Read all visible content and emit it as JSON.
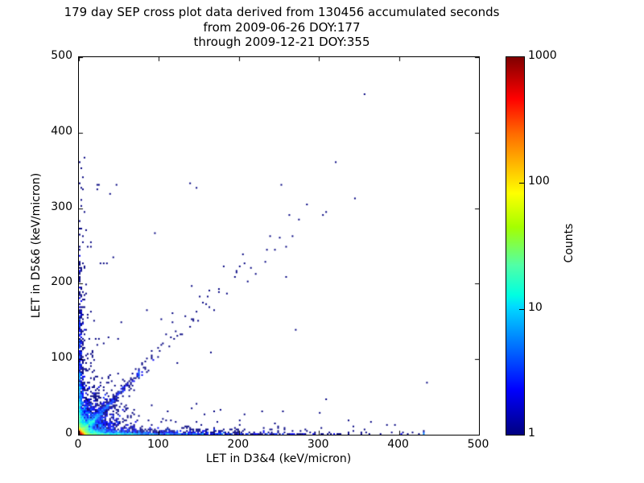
{
  "title": {
    "line1": "179 day SEP cross plot data derived from 130456 accumulated seconds",
    "line2": "from 2009-06-26 DOY:177",
    "line3": "through 2009-12-21 DOY:355"
  },
  "axes": {
    "xlabel": "LET in D3&4 (keV/micron)",
    "ylabel": "LET in D5&6 (keV/micron)",
    "xtick_labels": [
      "0",
      "100",
      "200",
      "300",
      "400",
      "500"
    ],
    "ytick_labels": [
      "0",
      "100",
      "200",
      "300",
      "400",
      "500"
    ],
    "xtick_values": [
      0,
      100,
      200,
      300,
      400,
      500
    ],
    "ytick_values": [
      0,
      100,
      200,
      300,
      400,
      500
    ],
    "xlim": [
      0,
      500
    ],
    "ylim": [
      0,
      500
    ]
  },
  "colorbar": {
    "label": "Counts",
    "tick_labels": [
      "1000",
      "100",
      "10",
      "1"
    ],
    "tick_values": [
      1000,
      100,
      10,
      1
    ],
    "inner_tick_values": [
      100,
      10
    ],
    "scale": "log",
    "min": 1,
    "max": 1000,
    "colormap": "jet",
    "gradient_stops": [
      [
        0,
        "#800000"
      ],
      [
        11,
        "#ff0000"
      ],
      [
        20,
        "#ff6800"
      ],
      [
        30,
        "#ffc600"
      ],
      [
        36,
        "#ffff00"
      ],
      [
        45,
        "#a5ff00"
      ],
      [
        55,
        "#52ffa5"
      ],
      [
        63,
        "#00ffe1"
      ],
      [
        66,
        "#00dbff"
      ],
      [
        75,
        "#0080ff"
      ],
      [
        88,
        "#0000ff"
      ],
      [
        100,
        "#000080"
      ]
    ],
    "single_count_color": "#000080",
    "max_count_color": "#800000"
  },
  "chart_data": {
    "type": "scatter",
    "subtype": "2d-histogram-density, log color scale 1-1000, jet colormap, ~2px square markers",
    "title": "179 day SEP cross plot data derived from 130456 accumulated seconds from 2009-06-26 DOY:177 through 2009-12-21 DOY:355",
    "xlabel": "LET in D3&4 (keV/micron)",
    "ylabel": "LET in D5&6 (keV/micron)",
    "xlim": [
      0,
      500
    ],
    "ylim": [
      0,
      500
    ],
    "grid": false,
    "legend": "colorbar right, log counts 1 to 1000",
    "bin_size_data_units": 2,
    "seed": 11,
    "clusters": [
      {
        "name": "origin-hot-core",
        "n": 4000,
        "x": {
          "dist": "exp",
          "scale": 2.2,
          "off": 0,
          "max": 495
        },
        "y": {
          "dist": "exp",
          "scale": 2.2,
          "off": 0,
          "max": 495
        }
      },
      {
        "name": "x-axis-band",
        "n": 1300,
        "x": {
          "dist": "exp",
          "scale": 90,
          "off": 0,
          "max": 430
        },
        "y": {
          "dist": "exp",
          "scale": 2.2,
          "off": 0,
          "max": 490
        }
      },
      {
        "name": "y-axis-band",
        "n": 750,
        "x": {
          "dist": "exp",
          "scale": 2.2,
          "off": 0,
          "max": 490
        },
        "y": {
          "dist": "exp",
          "scale": 65,
          "off": 0,
          "max": 370
        }
      },
      {
        "name": "origin-cloud",
        "n": 2200,
        "x": {
          "dist": "exp",
          "scale": 16,
          "off": 0,
          "max": 495
        },
        "y": {
          "dist": "exp",
          "scale": 16,
          "off": 0,
          "max": 495
        }
      },
      {
        "name": "diagonal-dense",
        "n": 700,
        "diag": true,
        "t": {
          "scale": 20,
          "off": 0,
          "max": 75
        },
        "slope": 1.07,
        "noise": 2.5
      },
      {
        "name": "diagonal-sparse",
        "n": 130,
        "diag": true,
        "t": {
          "scale": 70,
          "off": 18,
          "max": 310
        },
        "slope": 1.08,
        "noise": 6
      },
      {
        "name": "above-x-band",
        "n": 60,
        "x": {
          "dist": "exp",
          "scale": 120,
          "off": 0,
          "max": 400
        },
        "y": {
          "dist": "exp",
          "scale": 12,
          "off": 5,
          "max": 48
        }
      },
      {
        "name": "left-mid-speckle",
        "n": 60,
        "x": {
          "dist": "exp",
          "scale": 12,
          "off": 2,
          "max": 60
        },
        "y": {
          "dist": "exp",
          "scale": 70,
          "off": 50,
          "max": 330
        }
      }
    ],
    "outlier_points": [
      [
        356,
        450
      ],
      [
        321,
        361
      ],
      [
        344,
        313
      ],
      [
        305,
        291
      ],
      [
        308,
        294
      ],
      [
        274,
        284
      ],
      [
        266,
        262
      ],
      [
        258,
        248
      ],
      [
        252,
        331
      ],
      [
        245,
        245
      ],
      [
        234,
        244
      ],
      [
        232,
        229
      ],
      [
        221,
        213
      ],
      [
        211,
        203
      ],
      [
        258,
        208
      ],
      [
        205,
        238
      ],
      [
        180,
        222
      ],
      [
        185,
        186
      ],
      [
        162,
        190
      ],
      [
        150,
        183
      ],
      [
        141,
        196
      ],
      [
        169,
        164
      ],
      [
        148,
        150
      ],
      [
        132,
        156
      ],
      [
        117,
        148
      ],
      [
        116,
        161
      ],
      [
        108,
        132
      ],
      [
        115,
        128
      ],
      [
        102,
        153
      ],
      [
        91,
        110
      ],
      [
        84,
        165
      ],
      [
        122,
        94
      ],
      [
        164,
        108
      ],
      [
        271,
        139
      ],
      [
        434,
        68
      ],
      [
        395,
        13
      ],
      [
        365,
        16
      ],
      [
        336,
        18
      ],
      [
        301,
        28
      ],
      [
        245,
        14
      ],
      [
        228,
        30
      ],
      [
        206,
        26
      ],
      [
        156,
        27
      ],
      [
        146,
        41
      ],
      [
        95,
        267
      ],
      [
        22,
        325
      ],
      [
        30,
        227
      ],
      [
        34,
        227
      ],
      [
        147,
        326
      ],
      [
        139,
        333
      ],
      [
        6,
        366
      ],
      [
        5,
        340
      ],
      [
        4,
        325
      ],
      [
        3,
        310
      ],
      [
        2,
        302
      ]
    ]
  }
}
